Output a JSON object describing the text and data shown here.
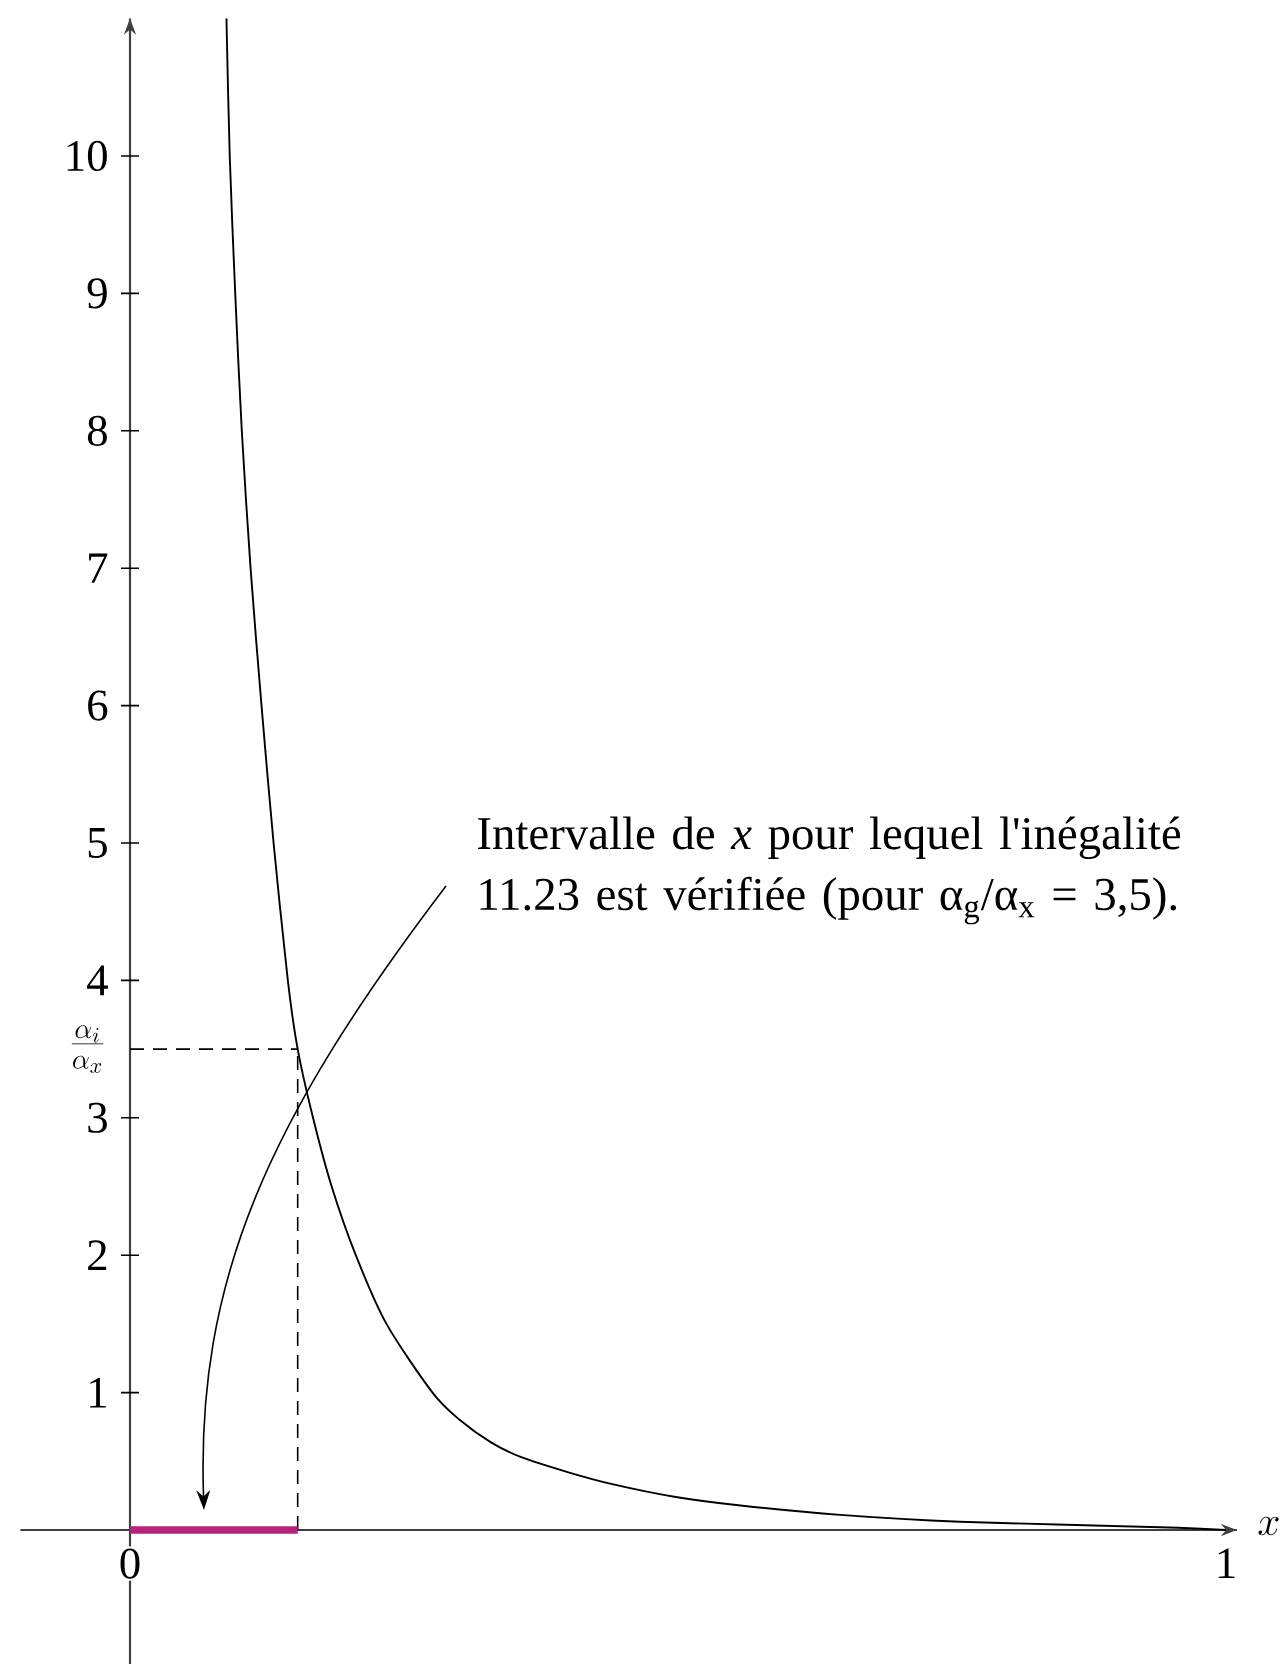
{
  "chart_data": {
    "type": "line",
    "series": [
      {
        "color": "#000000",
        "x": [
          0.088,
          0.091,
          0.096,
          0.102,
          0.11,
          0.12,
          0.131,
          0.144,
          0.153,
          0.167,
          0.184,
          0.206,
          0.234,
          0.276,
          0.301,
          0.329,
          0.357,
          0.4,
          0.442,
          0.498,
          0.555,
          0.648,
          0.757,
          0.94,
          1.0
        ],
        "values": [
          11,
          10,
          9,
          8,
          7,
          6,
          5,
          4,
          3.5,
          3,
          2.5,
          2,
          1.5,
          1,
          0.8,
          0.64,
          0.53,
          0.42,
          0.33,
          0.24,
          0.18,
          0.11,
          0.06,
          0.02,
          0
        ]
      },
      {
        "type": "line",
        "color": "#b5247a",
        "x": [
          0,
          0.153
        ],
        "values": [
          0,
          0
        ]
      }
    ],
    "xlim": [
      -0.1,
      1.01
    ],
    "ylim": [
      -1,
      11
    ],
    "xticks": [
      0,
      1
    ],
    "yticks": [
      1,
      2,
      3,
      4,
      5,
      6,
      7,
      8,
      9,
      10
    ],
    "xlabel": "x",
    "ref_lines": [
      {
        "axis": "y",
        "value": 3.5,
        "label": "\\frac{\\alpha_i}{\\alpha_x}",
        "line_style": "dashed",
        "color": "#000000"
      },
      {
        "axis": "x",
        "value": 0.153,
        "line_style": "dashed",
        "color": "#000000"
      }
    ],
    "annotations": [
      "Intervalle de *x* pour lequel l'inégalité 11.23 est vérifiée (pour α$_{g}$/α$_{x}$ = 3,5)."
    ]
  }
}
